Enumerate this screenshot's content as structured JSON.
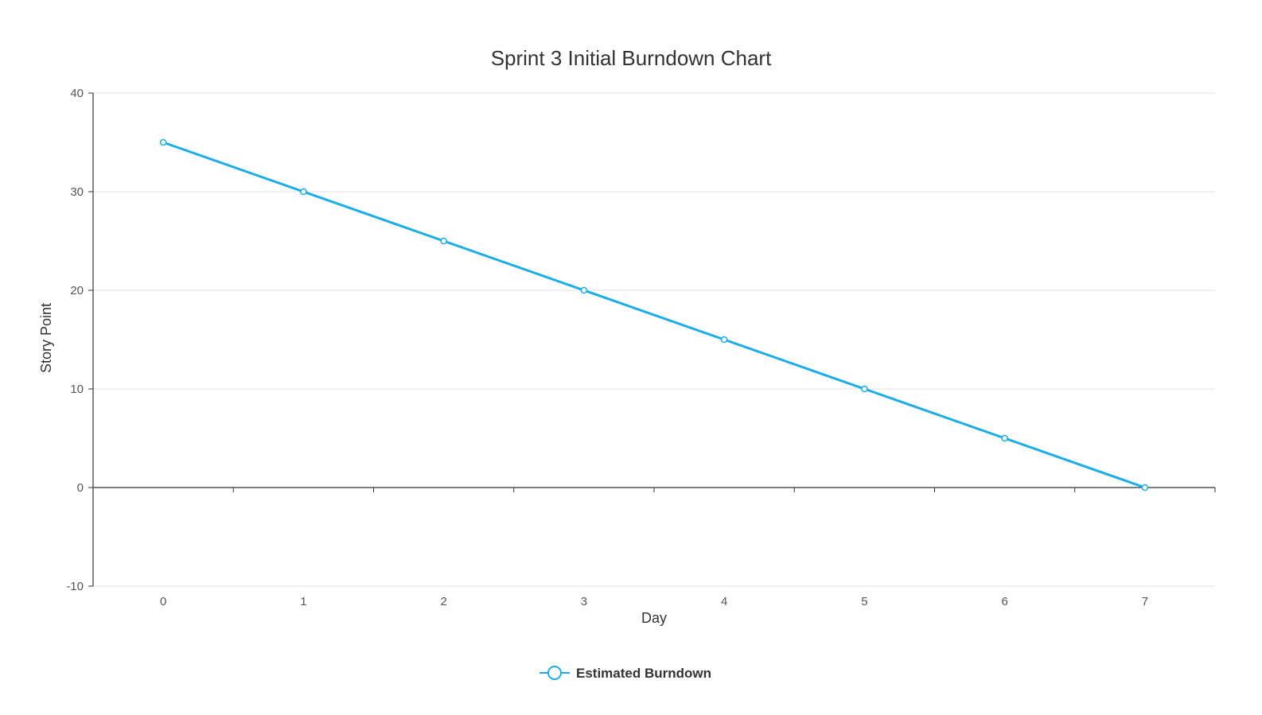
{
  "chart_data": {
    "type": "line",
    "title": "Sprint 3 Initial Burndown Chart",
    "xlabel": "Day",
    "ylabel": "Story Point",
    "x": [
      0,
      1,
      2,
      3,
      4,
      5,
      6,
      7
    ],
    "series": [
      {
        "name": "Estimated Burndown",
        "values": [
          35,
          30,
          25,
          20,
          15,
          10,
          5,
          0
        ],
        "color": "#1AADE8"
      }
    ],
    "ylim": [
      -10,
      40
    ],
    "yticks": [
      -10,
      0,
      10,
      20,
      30,
      40
    ],
    "xlim": [
      -0.5,
      7.5
    ],
    "grid": true,
    "legend": "bottom-center"
  }
}
